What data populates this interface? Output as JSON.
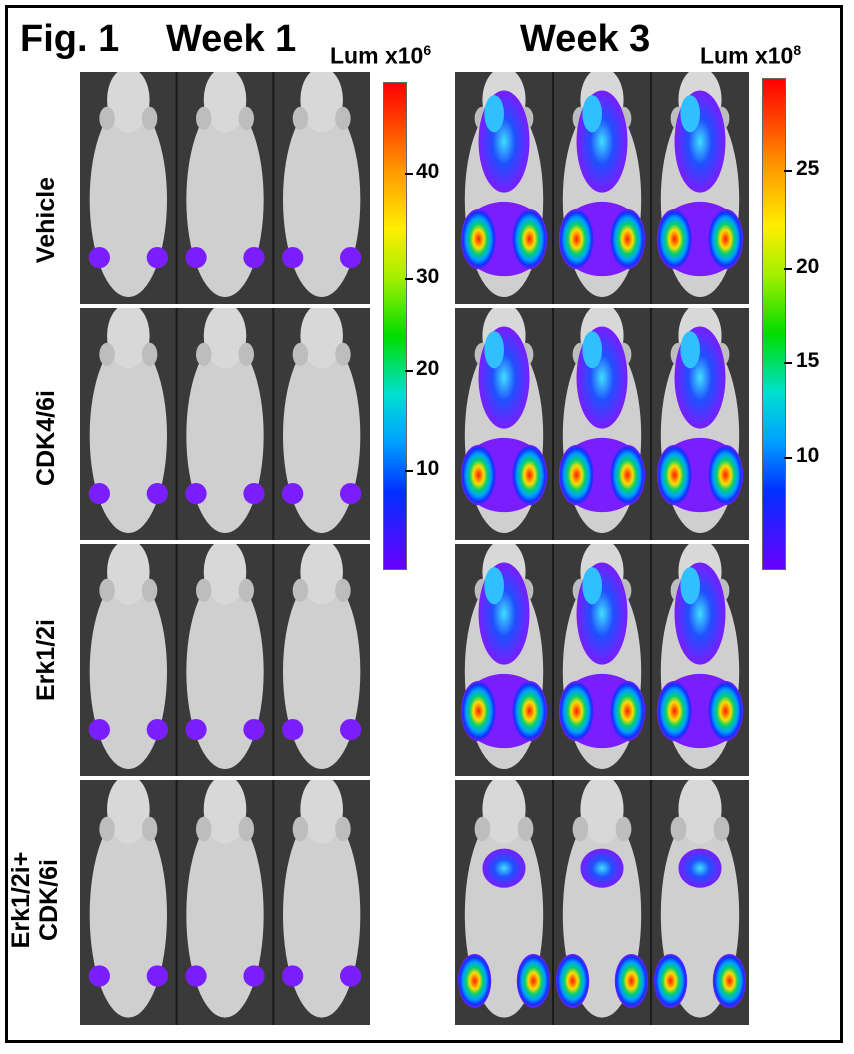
{
  "figure_label": "Fig. 1",
  "columns": {
    "week1": "Week 1",
    "week3": "Week 3"
  },
  "colorbars": {
    "week1": {
      "label": "Lum x10",
      "exp": "6",
      "ticks": [
        "40",
        "30",
        "20",
        "10"
      ]
    },
    "week3": {
      "label": "Lum x10",
      "exp": "8",
      "ticks": [
        "25",
        "20",
        "15",
        "10"
      ]
    }
  },
  "rows": [
    {
      "label": "Vehicle"
    },
    {
      "label": "CDK4/6i"
    },
    {
      "label": "Erk1/2i"
    },
    {
      "label_line1": "Erk1/2i+",
      "label_line2": "CDK/6i"
    }
  ],
  "colors": {
    "mouse_bg": "#3a3a3a",
    "mouse_body": "#cfcfcf",
    "low_signal": "#7a1dff",
    "high_signal": "#ff2200"
  }
}
